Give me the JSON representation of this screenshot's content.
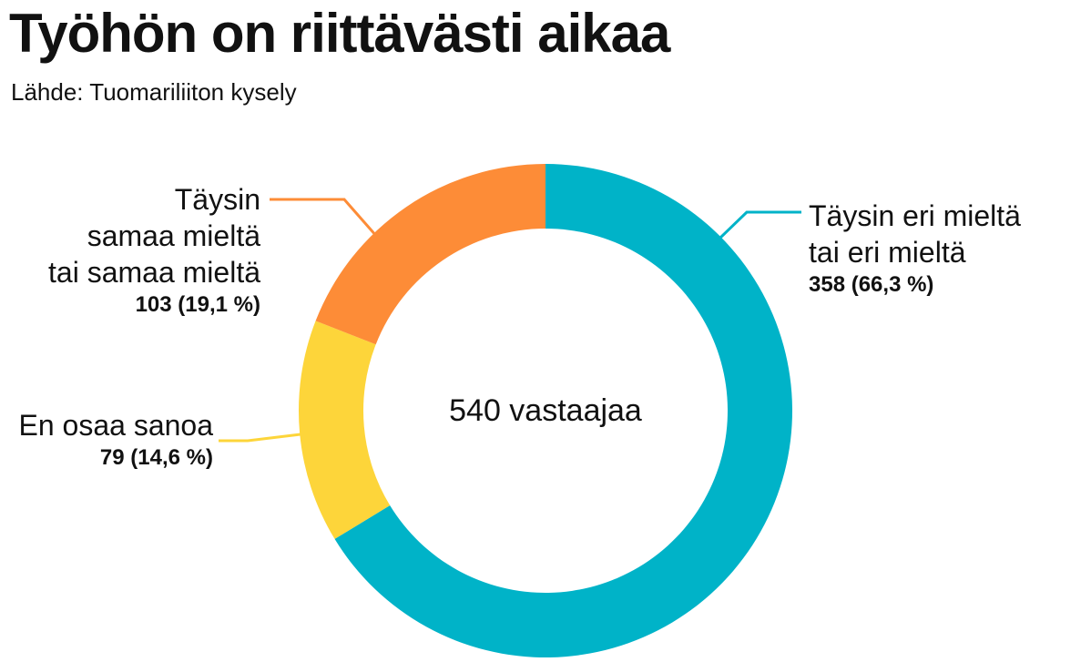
{
  "chart_data": {
    "type": "pie",
    "variant": "donut",
    "title": "Työhön on riittävästi aikaa",
    "subtitle": "Lähde: Tuomariliiton kysely",
    "center_label": "540 vastaajaa",
    "total": 540,
    "slices": [
      {
        "label_lines": [
          "Täysin eri mieltä",
          "tai eri mieltä"
        ],
        "value": 358,
        "value_text": "358 (66,3 %)",
        "color": "#00b3c8"
      },
      {
        "label_lines": [
          "En osaa sanoa"
        ],
        "value": 79,
        "value_text": "79 (14,6 %)",
        "color": "#fdd53a"
      },
      {
        "label_lines": [
          "Täysin",
          "samaa mieltä",
          "tai samaa mieltä"
        ],
        "value": 103,
        "value_text": "103 (19,1 %)",
        "color": "#fd8c37"
      }
    ]
  }
}
